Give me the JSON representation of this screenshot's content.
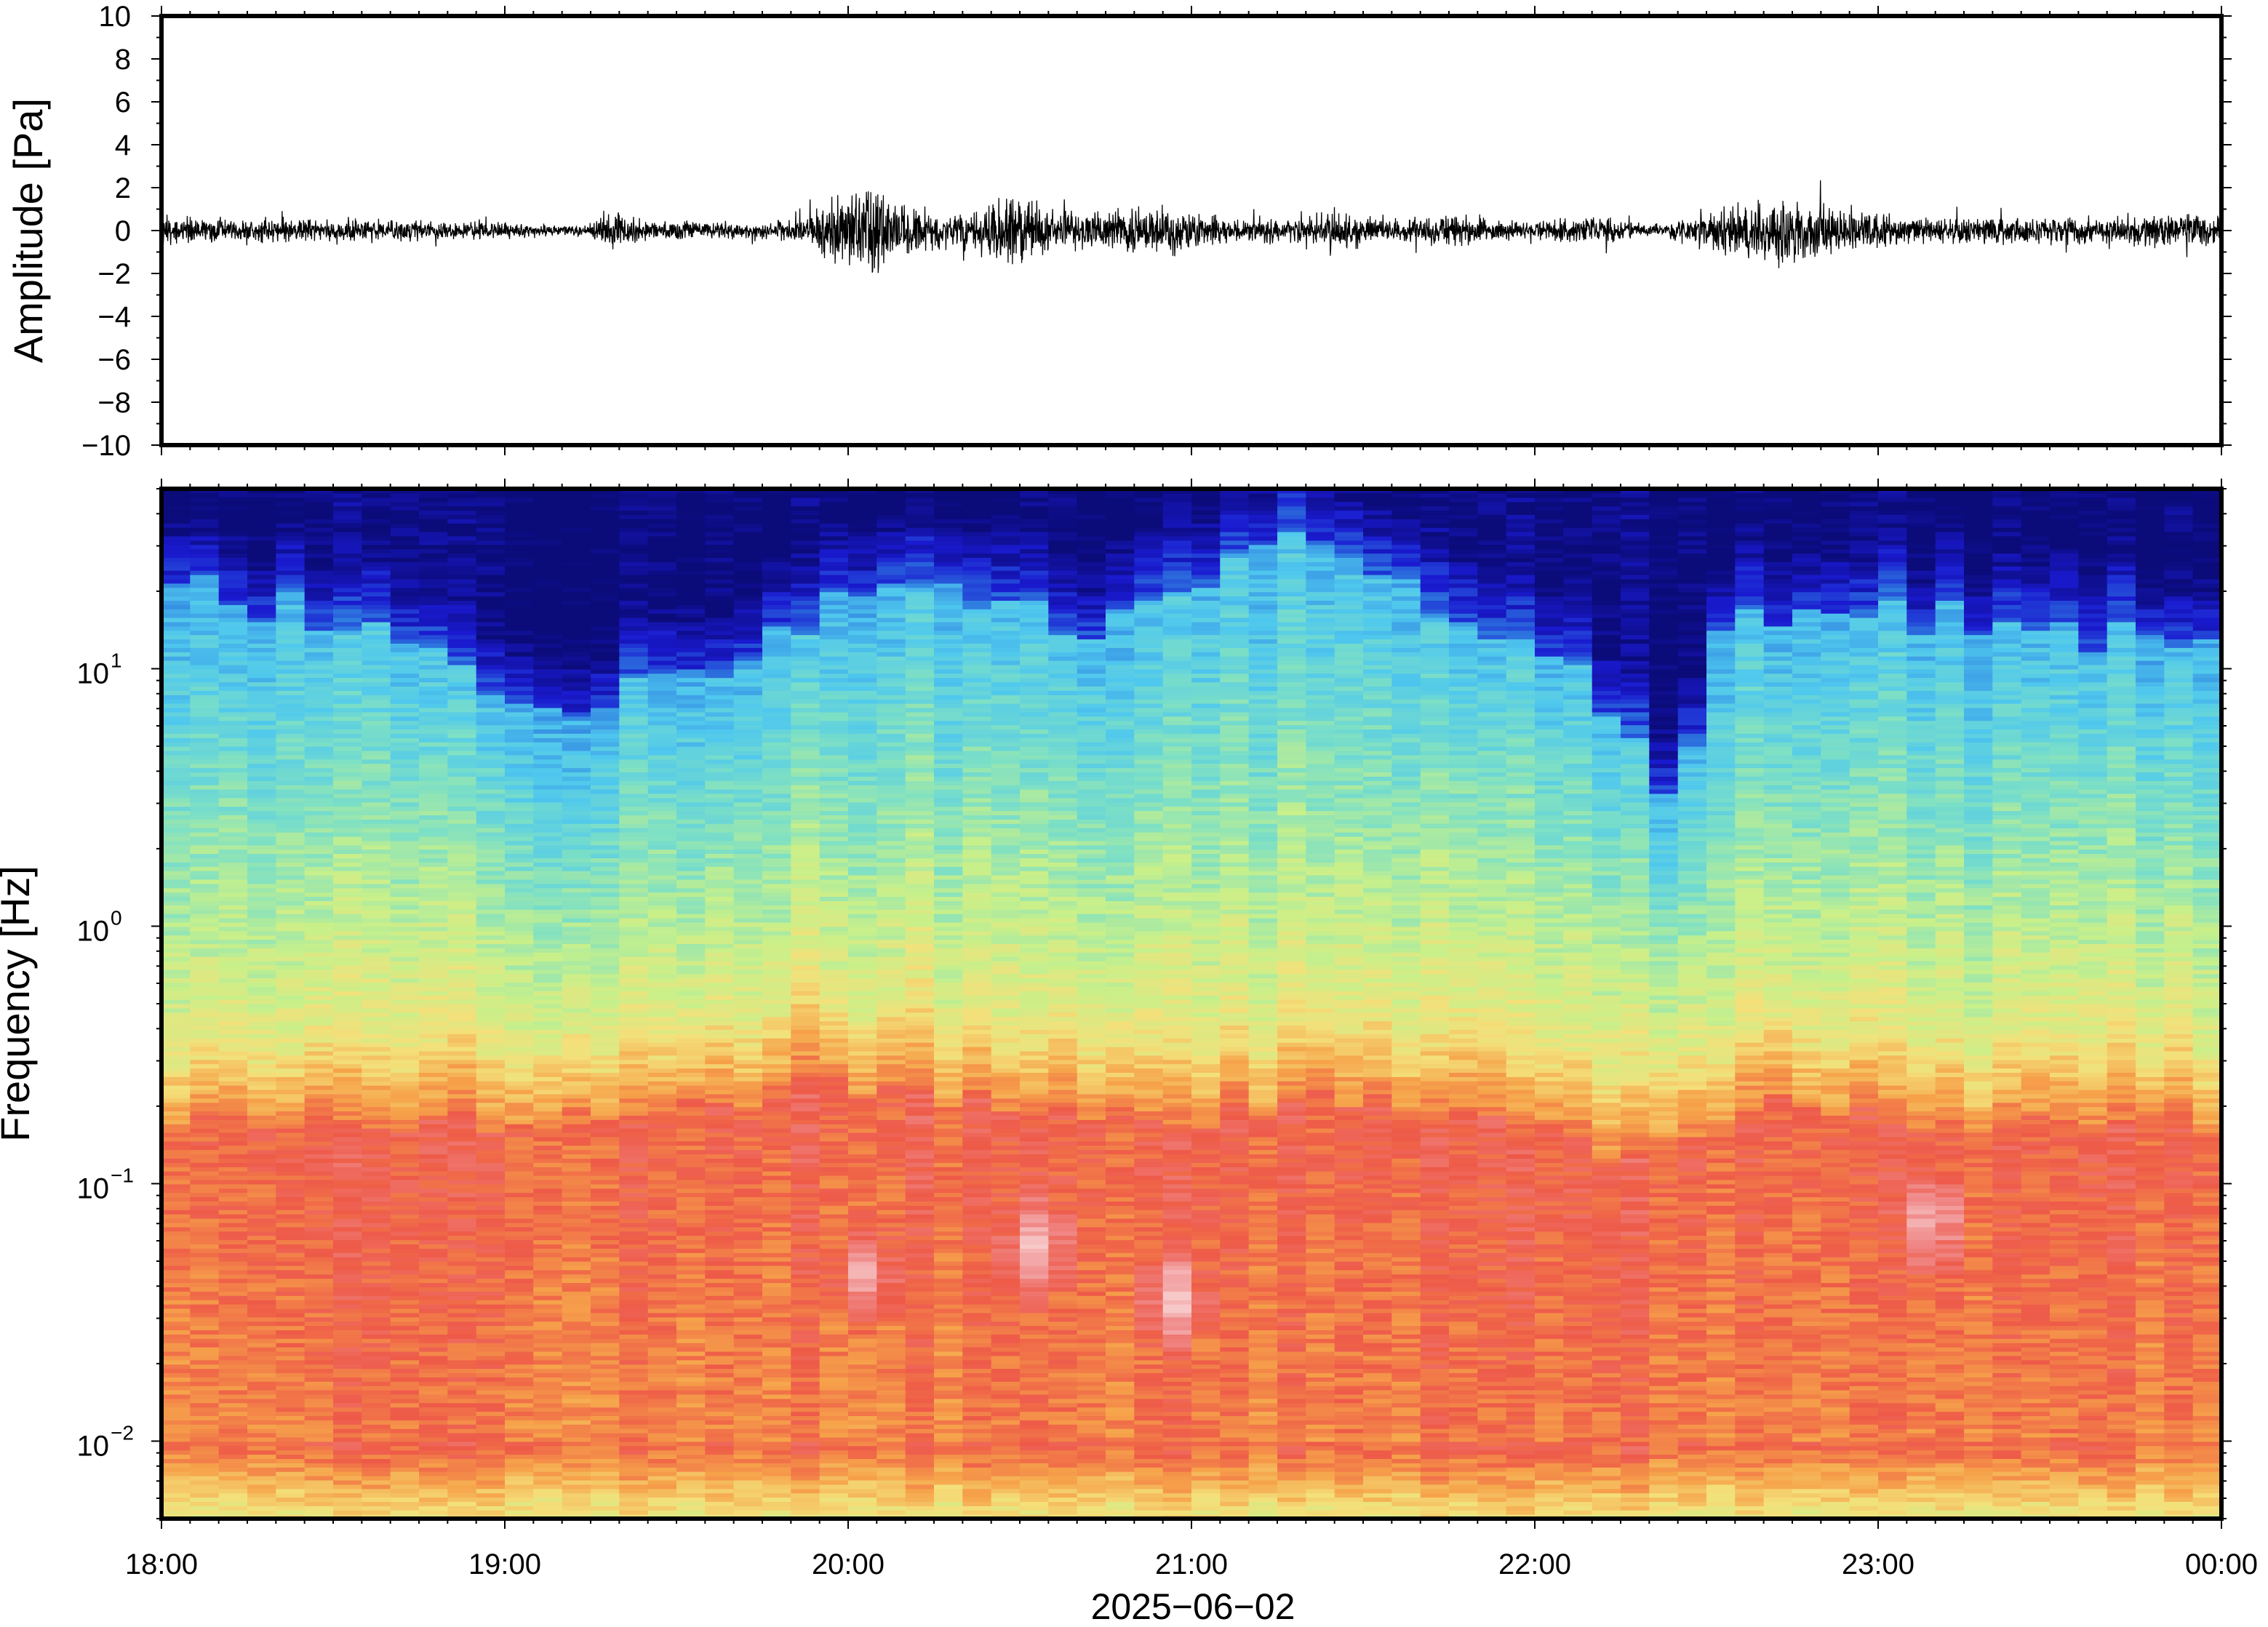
{
  "chart_data": [
    {
      "type": "line",
      "panel": "waveform",
      "ylabel": "Amplitude [Pa]",
      "ylim": [
        -10,
        10
      ],
      "y_ticks": [
        10,
        8,
        6,
        4,
        2,
        0,
        -2,
        -4,
        -6,
        -8,
        -10
      ],
      "y_tick_labels": [
        "10",
        "8",
        "6",
        "4",
        "2",
        "0",
        "−2",
        "−4",
        "−6",
        "−8",
        "−10"
      ],
      "x_range_hours": [
        18.0,
        24.0
      ],
      "noise_envelope_pa": [
        [
          18.0,
          1.0
        ],
        [
          18.4,
          0.9
        ],
        [
          18.9,
          0.7
        ],
        [
          19.25,
          0.35
        ],
        [
          19.3,
          1.9
        ],
        [
          19.4,
          0.8
        ],
        [
          19.7,
          0.6
        ],
        [
          19.85,
          0.9
        ],
        [
          19.95,
          2.3
        ],
        [
          20.05,
          3.6
        ],
        [
          20.15,
          2.0
        ],
        [
          20.3,
          1.1
        ],
        [
          20.5,
          2.8
        ],
        [
          20.6,
          1.4
        ],
        [
          20.9,
          1.9
        ],
        [
          21.1,
          1.0
        ],
        [
          21.3,
          1.0
        ],
        [
          21.4,
          1.6
        ],
        [
          21.55,
          1.0
        ],
        [
          21.8,
          1.1
        ],
        [
          22.0,
          0.6
        ],
        [
          22.2,
          1.1
        ],
        [
          22.35,
          0.3
        ],
        [
          22.5,
          1.4
        ],
        [
          22.75,
          2.9
        ],
        [
          23.0,
          1.2
        ],
        [
          23.5,
          1.0
        ],
        [
          24.0,
          1.3
        ]
      ]
    },
    {
      "type": "heatmap",
      "panel": "spectrogram",
      "ylabel": "Frequency [Hz]",
      "y_scale": "log",
      "ylim": [
        0.005,
        50
      ],
      "y_ticks": [
        0.01,
        0.1,
        1,
        10
      ],
      "y_tick_labels": [
        {
          "base": "10",
          "exp": "−2"
        },
        {
          "base": "10",
          "exp": "−1"
        },
        {
          "base": "10",
          "exp": "0"
        },
        {
          "base": "10",
          "exp": "1"
        }
      ],
      "colormap": [
        "#0b0b7a",
        "#1a1ad0",
        "#2f7fe0",
        "#4fc8ee",
        "#7ee0c4",
        "#c8f08a",
        "#f4e07a",
        "#f6a24a",
        "#ee5a48",
        "#f08a8a",
        "#f7c8c8"
      ],
      "time_bin_hours": 0.0833,
      "blue_transition_log10_hz": [
        [
          18.0,
          1.3
        ],
        [
          18.4,
          1.25
        ],
        [
          18.7,
          1.15
        ],
        [
          19.0,
          0.85
        ],
        [
          19.25,
          0.9
        ],
        [
          19.5,
          1.0
        ],
        [
          19.8,
          1.1
        ],
        [
          20.0,
          1.3
        ],
        [
          20.3,
          1.3
        ],
        [
          20.7,
          1.2
        ],
        [
          21.0,
          1.3
        ],
        [
          21.4,
          1.55
        ],
        [
          21.7,
          1.25
        ],
        [
          22.0,
          1.0
        ],
        [
          22.2,
          0.9
        ],
        [
          22.35,
          0.55
        ],
        [
          22.45,
          0.75
        ],
        [
          22.55,
          1.2
        ],
        [
          23.0,
          1.2
        ],
        [
          23.5,
          1.15
        ],
        [
          24.0,
          1.1
        ]
      ],
      "red_band_top_log10_hz": [
        [
          18.0,
          -0.75
        ],
        [
          19.0,
          -0.78
        ],
        [
          19.95,
          -0.62
        ],
        [
          20.5,
          -0.7
        ],
        [
          21.0,
          -0.75
        ],
        [
          21.4,
          -0.65
        ],
        [
          22.0,
          -0.8
        ],
        [
          22.25,
          -0.9
        ],
        [
          22.45,
          -0.85
        ],
        [
          22.7,
          -0.7
        ],
        [
          23.0,
          -0.75
        ],
        [
          24.0,
          -0.78
        ]
      ],
      "pink_hotspots": [
        {
          "t_hours": 20.05,
          "log10_hz": -1.35
        },
        {
          "t_hours": 20.55,
          "log10_hz": -1.25
        },
        {
          "t_hours": 20.95,
          "log10_hz": -1.45
        },
        {
          "t_hours": 23.15,
          "log10_hz": -1.15
        }
      ]
    }
  ],
  "x_axis": {
    "ticks_hours": [
      18,
      19,
      20,
      21,
      22,
      23,
      24
    ],
    "tick_labels": [
      "18:00",
      "19:00",
      "20:00",
      "21:00",
      "22:00",
      "23:00",
      "00:00"
    ],
    "date_label": "2025−06−02"
  },
  "style": {
    "trace_color": "#000000",
    "frame_color": "#000000"
  }
}
